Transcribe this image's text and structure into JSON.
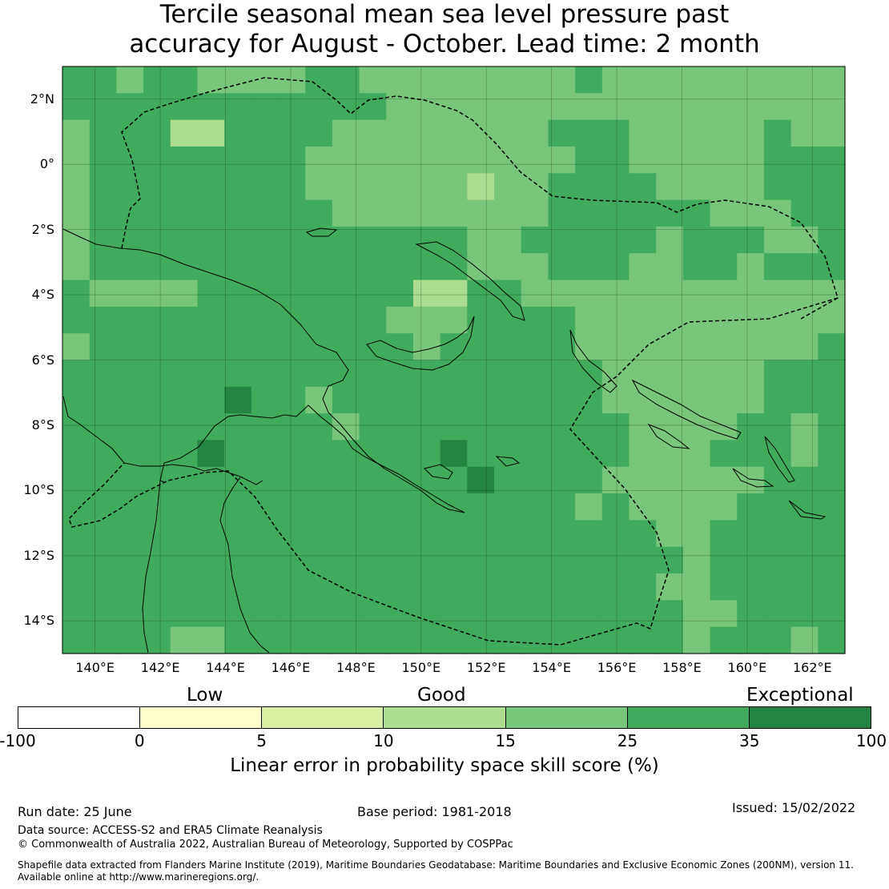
{
  "title": {
    "line1": "Tercile seasonal mean sea level pressure past",
    "line2": "accuracy for August - October. Lead time: 2 month"
  },
  "map": {
    "lat_labels": [
      "2°N",
      "0°",
      "2°S",
      "4°S",
      "6°S",
      "8°S",
      "10°S",
      "12°S",
      "14°S"
    ],
    "lon_labels": [
      "140°E",
      "142°E",
      "144°E",
      "146°E",
      "148°E",
      "150°E",
      "152°E",
      "154°E",
      "156°E",
      "158°E",
      "160°E",
      "162°E"
    ],
    "lat_values": [
      2,
      0,
      -2,
      -4,
      -6,
      -8,
      -10,
      -12,
      -14
    ],
    "lon_values": [
      140,
      142,
      144,
      146,
      148,
      150,
      152,
      154,
      156,
      158,
      160,
      162
    ],
    "extent": {
      "lon_min": 139,
      "lon_max": 163,
      "lat_min": -15,
      "lat_max": 3
    },
    "cell_size_deg": 0.833,
    "grid_rows": 22,
    "grid_cols": 29,
    "colors": {
      "A": "#78c679",
      "B": "#41ab5d",
      "C": "#238443",
      "D": "#addd8e"
    },
    "skill_grid": [
      "BBABBAAAABBAAAAAAAABAAAAAAAAA",
      "BBBBBBBBBBBBAAAAAAAAAAAAAAAAA",
      "ABBBDDBBBBAAAAAAAABBBAAAAABAA",
      "ABBBBBBBBAAAAAAAAAABBAAAAABBB",
      "ABBBBBBBBAAAAAAAAABBBBAAAABBB",
      "ABBBBBBBBBAAAAAAAABBBBBBAAABB",
      "ABBBBBBBBBBBBBBBBBBBBBBBBBBBB",
      "ABBBBBBBBBBBBBBBBBBBBBBBBBBBB",
      "BAAAABBBBBBBBBBBBAAAAAAAAAAAA",
      "BBBBBBBBBBBBBBBBBBBAAAAAAAAAA",
      "ABBBBBBBBBBBBBBBBBBAAAAAAAAAB",
      "BBBBBBBBBBBBBBBBBBBBAAAAAABBB",
      "BBBBBBBBBBBBBBBBBBBBAAAAAABBB",
      "BBBBBBBBBBBBBBBBBBBBBAAAABBAB",
      "BBBBBBBBBBBBBBBBBBBBBAAABBBAB",
      "BBBBBBBBBBBBBBBBBBBBAAAAAABBB",
      "BBBBBBBBBBBBBBBBBBBBBAAAABBBB",
      "BBBBBBBBBBBBBBBBBBBBBBAABBBBB",
      "BBBBBBBBBBBBBBBBBBBBBBBABBBBB",
      "BBBBBBBBBBBBBBBBBBBBBBAABBBBB",
      "BBBBBBBBBBBBBBBBBBBBBBBAABBBB",
      "BBBBAABBBBBBBBBBBBBBBBBABBBAB"
    ],
    "overrides": [
      {
        "row": 12,
        "col": 6,
        "c": "C"
      },
      {
        "row": 14,
        "col": 5,
        "c": "C"
      },
      {
        "row": 14,
        "col": 14,
        "c": "C"
      },
      {
        "row": 15,
        "col": 15,
        "c": "C"
      },
      {
        "row": 4,
        "col": 15,
        "c": "D"
      },
      {
        "row": 8,
        "col": 14,
        "c": "D"
      },
      {
        "row": 8,
        "col": 13,
        "c": "D"
      },
      {
        "row": 9,
        "col": 12,
        "c": "A"
      },
      {
        "row": 9,
        "col": 13,
        "c": "A"
      },
      {
        "row": 9,
        "col": 14,
        "c": "A"
      },
      {
        "row": 10,
        "col": 13,
        "c": "A"
      },
      {
        "row": 13,
        "col": 10,
        "c": "A"
      },
      {
        "row": 12,
        "col": 9,
        "c": "A"
      },
      {
        "row": 16,
        "col": 19,
        "c": "A"
      },
      {
        "row": 7,
        "col": 15,
        "c": "A"
      },
      {
        "row": 6,
        "col": 15,
        "c": "A"
      },
      {
        "row": 6,
        "col": 16,
        "c": "A"
      },
      {
        "row": 7,
        "col": 16,
        "c": "A"
      },
      {
        "row": 7,
        "col": 17,
        "c": "A"
      },
      {
        "row": 8,
        "col": 18,
        "c": "A"
      },
      {
        "row": 8,
        "col": 19,
        "c": "A"
      },
      {
        "row": 7,
        "col": 21,
        "c": "A"
      },
      {
        "row": 7,
        "col": 22,
        "c": "A"
      },
      {
        "row": 6,
        "col": 22,
        "c": "A"
      },
      {
        "row": 7,
        "col": 25,
        "c": "A"
      },
      {
        "row": 6,
        "col": 26,
        "c": "A"
      },
      {
        "row": 6,
        "col": 27,
        "c": "A"
      }
    ]
  },
  "colorbar": {
    "category_labels": {
      "low": "Low",
      "good": "Good",
      "exceptional": "Exceptional"
    },
    "segments": [
      {
        "from": "-100",
        "to": "0",
        "color": "#ffffff"
      },
      {
        "from": "0",
        "to": "5",
        "color": "#ffffcc"
      },
      {
        "from": "5",
        "to": "10",
        "color": "#d9f0a3"
      },
      {
        "from": "10",
        "to": "15",
        "color": "#addd8e"
      },
      {
        "from": "15",
        "to": "25",
        "color": "#78c679"
      },
      {
        "from": "25",
        "to": "35",
        "color": "#41ab5d"
      },
      {
        "from": "35",
        "to": "100",
        "color": "#238443"
      }
    ],
    "ticks": [
      "-100",
      "0",
      "5",
      "10",
      "15",
      "25",
      "35",
      "100"
    ],
    "title": "Linear error in probability space skill score (%)"
  },
  "footer": {
    "run_date": "Run date: 25 June",
    "base_period": "Base period: 1981-2018",
    "issued": "Issued: 15/02/2022",
    "data_source": "Data source: ACCESS-S2 and ERA5 Climate Reanalysis",
    "copyright": "© Commonwealth of Australia 2022, Australian Bureau of Meteorology, Supported by COSPPac",
    "shapefile_line1": "Shapefile data extracted from Flanders Marine Institute (2019), Maritime Boundaries Geodatabase: Maritime Boundaries and Exclusive Economic Zones (200NM), version 11.",
    "shapefile_line2": "Available online at http://www.marineregions.org/."
  }
}
